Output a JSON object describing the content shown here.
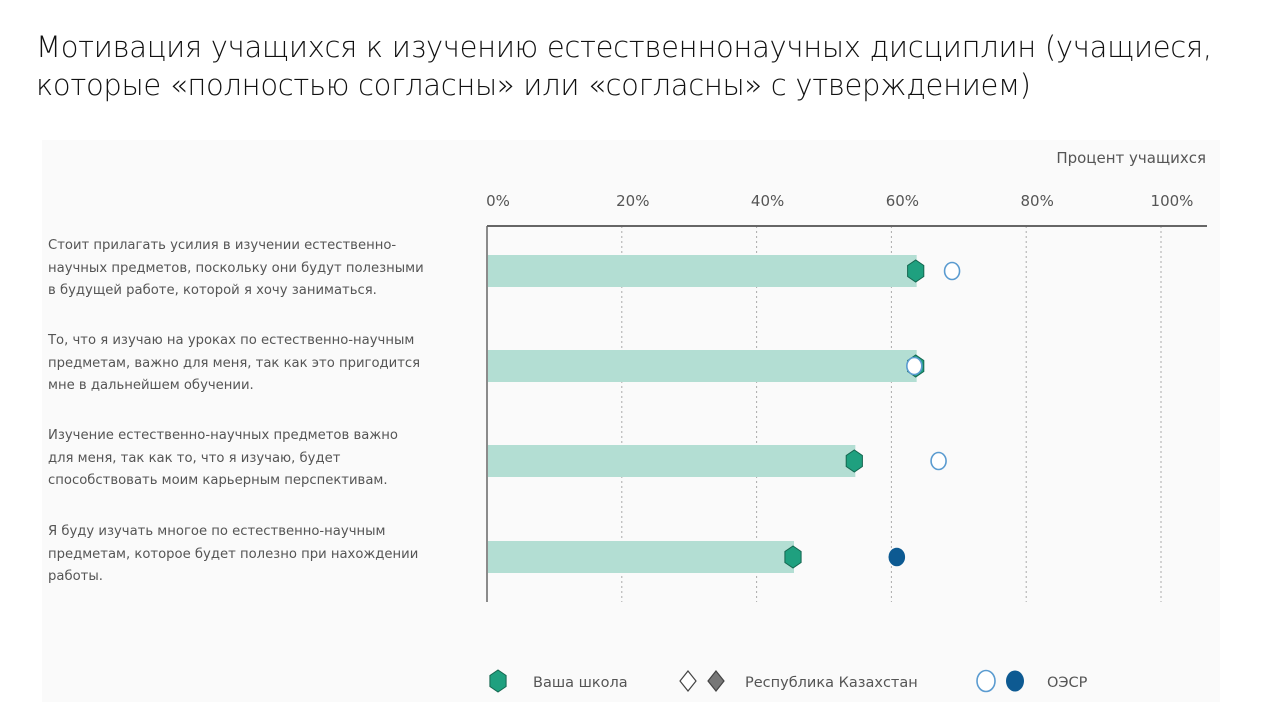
{
  "title_lines": [
    "Мотивация учащихся к изучению естественнонаучных дисциплин (учащиеся,",
    "которые «полностью согласны» или «согласны» с утверждением)"
  ],
  "chart_data": {
    "type": "bar",
    "orientation": "horizontal",
    "axis_title": "Процент учащихся",
    "xlim": [
      0,
      100
    ],
    "ticks": [
      "0%",
      "20%",
      "40%",
      "60%",
      "80%",
      "100%"
    ],
    "tick_values": [
      0,
      20,
      40,
      60,
      80,
      100
    ],
    "grid": true,
    "categories": [
      [
        "Стоит прилагать усилия в изучении естественно-",
        "научных предметов, поскольку они будут полезными",
        "в будущей работе, которой я хочу заниматься."
      ],
      [
        "То, что я изучаю на уроках по естественно-научным",
        "предметам, важно для меня, так как это пригодится",
        "мне в дальнейшем обучении."
      ],
      [
        "Изучение естественно-научных предметов важно",
        "для меня, так как то, что я изучаю, будет",
        "способствовать моим карьерным перспективам."
      ],
      [
        "Я буду изучать многое по естественно-научным",
        "предметам, которое будет полезно при нахождении",
        "работы."
      ]
    ],
    "series": [
      {
        "name": "Ваша школа",
        "marker": "hexagon",
        "values": [
          63.6,
          63.6,
          54.5,
          45.4
        ]
      },
      {
        "name": "ОЭСР",
        "marker": "circle",
        "values": [
          69,
          63.4,
          67,
          60.8
        ],
        "filled": [
          false,
          false,
          false,
          true
        ]
      }
    ],
    "legend": [
      {
        "label": "Ваша школа"
      },
      {
        "label": "Республика Казахстан"
      },
      {
        "label": "ОЭСР"
      }
    ],
    "legend_placement": "bottom",
    "colors": {
      "bar": "#b3ded3",
      "school": "#1fa07f",
      "school_stroke": "#14664f",
      "oecd_open": "#5a9bd0",
      "oecd_filled": "#0d5a92",
      "kz_filled": "#777777"
    }
  }
}
